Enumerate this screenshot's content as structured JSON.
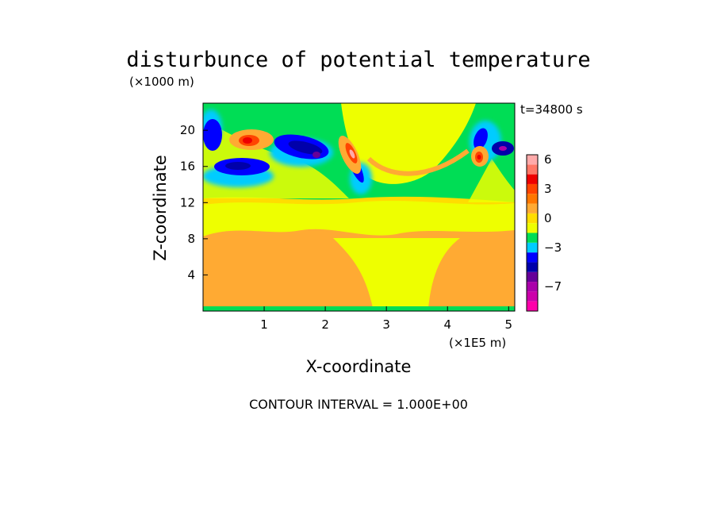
{
  "chart_data": {
    "type": "heatmap",
    "title": "disturbunce of potential temperature",
    "ylabel": "Z-coordinate",
    "y_unit": "(×1000 m)",
    "xlabel": "X-coordinate",
    "x_unit": "(×1E5 m)",
    "time_label": "t=34800 s",
    "footer": "CONTOUR INTERVAL = 1.000E+00",
    "xlim": [
      0,
      5.1
    ],
    "ylim": [
      0,
      23
    ],
    "x_ticks": [
      1,
      2,
      3,
      4,
      5
    ],
    "y_ticks": [
      4,
      8,
      12,
      16,
      20
    ],
    "colorbar": {
      "levels": [
        -9,
        -8,
        -7,
        -6,
        -5,
        -4,
        -3,
        -2,
        -1,
        0,
        1,
        2,
        3,
        4,
        5,
        6,
        7
      ],
      "colors": [
        "#ff00aa",
        "#cc00aa",
        "#aa00aa",
        "#660099",
        "#0000aa",
        "#0000ff",
        "#00ccff",
        "#00dd55",
        "#eeff00",
        "#ffdd00",
        "#ffaa33",
        "#ff7700",
        "#ff4400",
        "#ee0000",
        "#ff7766",
        "#ffaaaa"
      ],
      "tick_labels": [
        {
          "label": "6",
          "value": 6
        },
        {
          "label": "3",
          "value": 3
        },
        {
          "label": "0",
          "value": 0
        },
        {
          "label": "−3",
          "value": -3
        },
        {
          "label": "−7",
          "value": -7
        }
      ]
    },
    "features": [
      {
        "x": 0.15,
        "z": 19.5,
        "value": -3
      },
      {
        "x": 0.75,
        "z": 18.6,
        "value": 5
      },
      {
        "x": 0.55,
        "z": 16.0,
        "value": -4
      },
      {
        "x": 1.5,
        "z": 18.3,
        "value": -4
      },
      {
        "x": 1.85,
        "z": 17.3,
        "value": -6
      },
      {
        "x": 2.45,
        "z": 17.0,
        "value": 6
      },
      {
        "x": 2.6,
        "z": 15.0,
        "value": -2
      },
      {
        "x": 4.55,
        "z": 19.0,
        "value": -4
      },
      {
        "x": 4.55,
        "z": 16.8,
        "value": 5
      },
      {
        "x": 5.0,
        "z": 18.0,
        "value": -6
      }
    ]
  }
}
